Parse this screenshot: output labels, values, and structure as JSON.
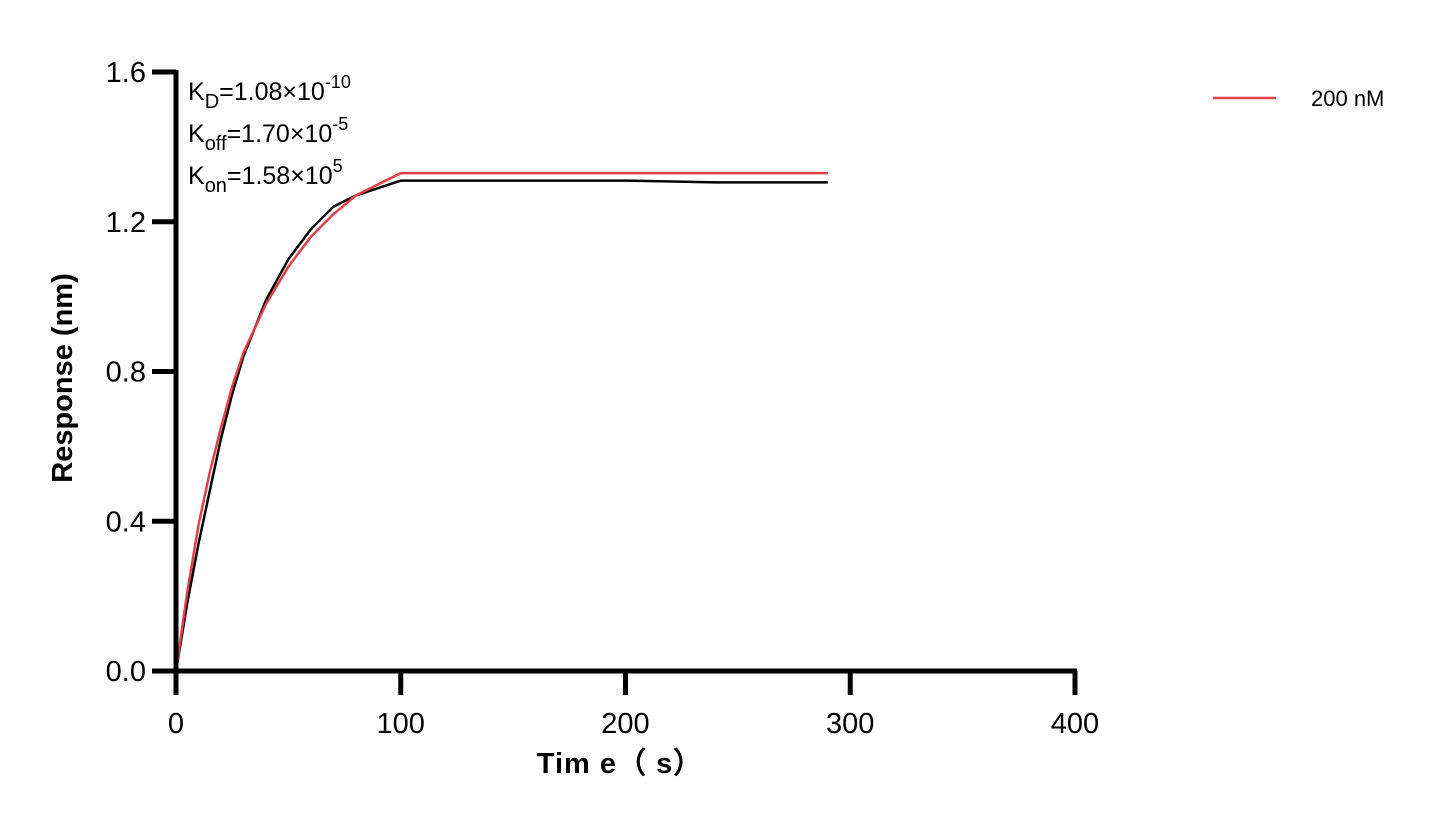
{
  "chart_data": {
    "type": "line",
    "xlabel": "Tim e（ s）",
    "ylabel": "Response (nm)",
    "xlim": [
      0,
      400
    ],
    "ylim": [
      0,
      1.6
    ],
    "xticks": [
      "0",
      "100",
      "200",
      "300",
      "400"
    ],
    "yticks": [
      "0.0",
      "0.4",
      "0.8",
      "1.2",
      "1.6"
    ],
    "grid": false,
    "legend_position": "top-right",
    "annotations": [
      {
        "base": "K",
        "sub": "D",
        "value": "=1.08×10",
        "sup": "-10"
      },
      {
        "base": "K",
        "sub": "off",
        "value": "=1.70×10",
        "sup": "-5"
      },
      {
        "base": "K",
        "sub": "on",
        "value": "=1.58×10",
        "sup": "5"
      }
    ],
    "series": [
      {
        "name": "200 nM",
        "role": "measured",
        "color": "#e0404a",
        "x": [
          0,
          5,
          10,
          15,
          20,
          25,
          30,
          40,
          50,
          60,
          70,
          80,
          90,
          100,
          110,
          130,
          150,
          170,
          190,
          210,
          230,
          250,
          270,
          290
        ],
        "y": [
          0.0,
          0.21,
          0.39,
          0.53,
          0.65,
          0.76,
          0.85,
          0.98,
          1.08,
          1.16,
          1.22,
          1.27,
          1.3,
          1.33,
          1.33,
          1.33,
          1.33,
          1.33,
          1.33,
          1.33,
          1.33,
          1.33,
          1.33,
          1.33
        ]
      },
      {
        "name": "",
        "role": "fit",
        "color": "#000000",
        "x": [
          0,
          5,
          10,
          15,
          20,
          25,
          30,
          40,
          50,
          60,
          70,
          80,
          90,
          100,
          150,
          200,
          240,
          290
        ],
        "y": [
          0.0,
          0.18,
          0.34,
          0.48,
          0.62,
          0.74,
          0.84,
          0.99,
          1.1,
          1.18,
          1.24,
          1.27,
          1.29,
          1.31,
          1.31,
          1.31,
          1.305,
          1.305
        ]
      }
    ]
  }
}
